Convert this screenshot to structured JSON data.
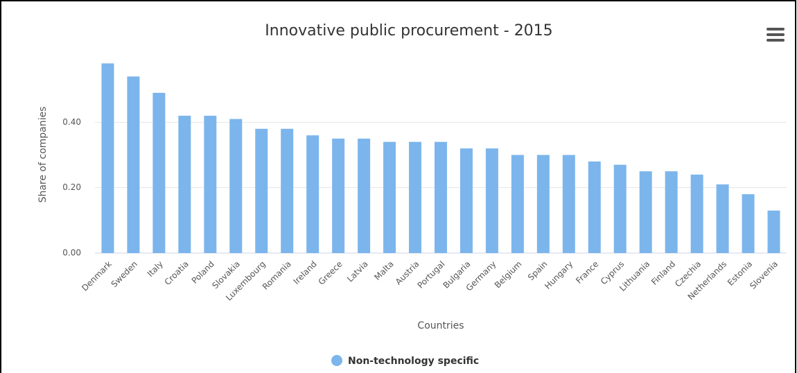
{
  "chart_data": {
    "type": "bar",
    "title": "Innovative public procurement - 2015",
    "x_label": "Countries",
    "y_label": "Share of companies",
    "categories": [
      "Denmark",
      "Sweden",
      "Italy",
      "Croatia",
      "Poland",
      "Slovakia",
      "Luxembourg",
      "Romania",
      "Ireland",
      "Greece",
      "Latvia",
      "Malta",
      "Austria",
      "Portugal",
      "Bulgaria",
      "Germany",
      "Belgium",
      "Spain",
      "Hungary",
      "France",
      "Cyprus",
      "Lithuania",
      "Finland",
      "Czechia",
      "Netherlands",
      "Estonia",
      "Slovenia"
    ],
    "series": [
      {
        "name": "Non-technology specific",
        "color": "#7cb5ec",
        "values": [
          0.58,
          0.54,
          0.49,
          0.42,
          0.42,
          0.41,
          0.38,
          0.38,
          0.36,
          0.35,
          0.35,
          0.34,
          0.34,
          0.34,
          0.32,
          0.32,
          0.3,
          0.3,
          0.3,
          0.28,
          0.27,
          0.25,
          0.25,
          0.24,
          0.21,
          0.18,
          0.13
        ]
      }
    ],
    "ylim": [
      0,
      0.6
    ],
    "yticks": [
      {
        "value": 0,
        "label": "0.00"
      },
      {
        "value": 0.2,
        "label": "0.20"
      },
      {
        "value": 0.4,
        "label": "0.40"
      }
    ],
    "grid": true
  }
}
